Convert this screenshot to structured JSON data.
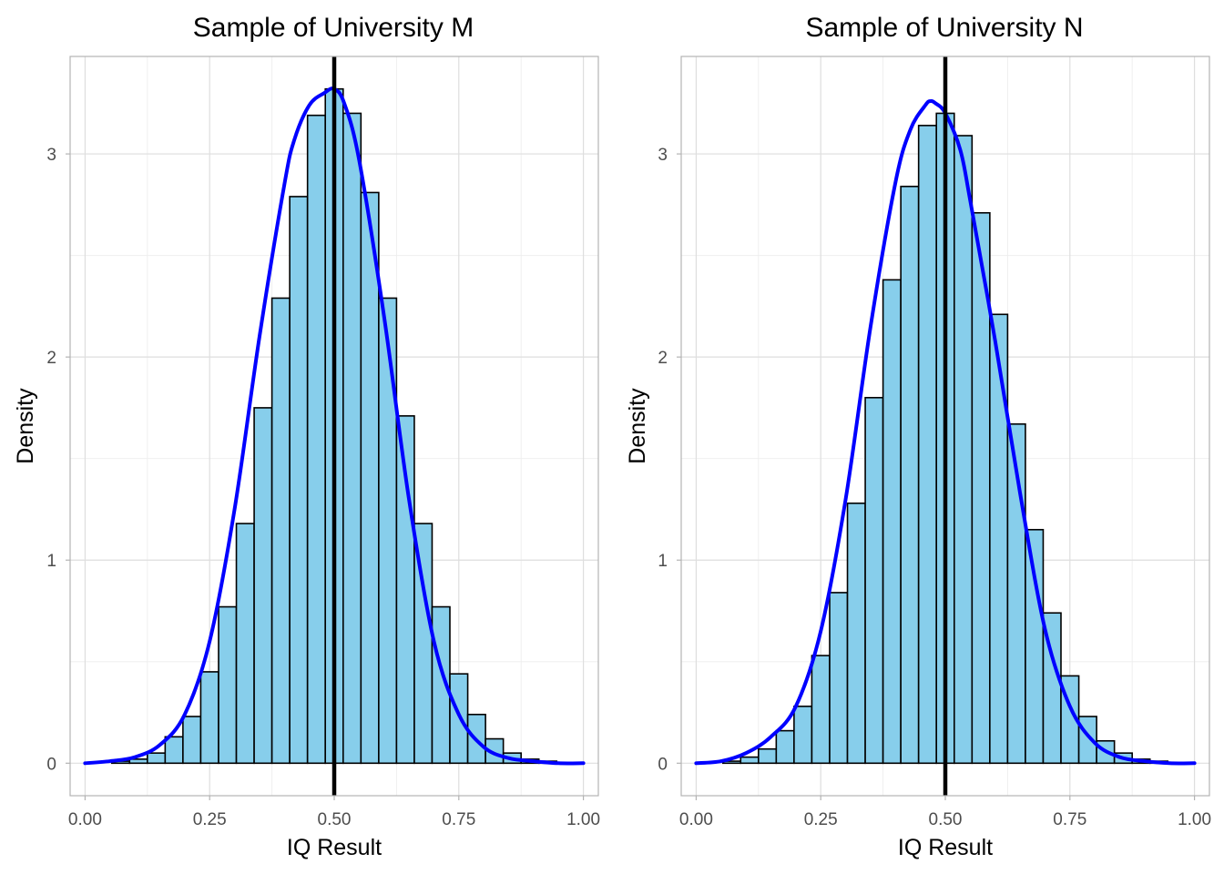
{
  "colors": {
    "bar_fill": "#87ceeb",
    "bar_stroke": "#000000",
    "density_line": "#0000ff",
    "ref_line": "#000000"
  },
  "chart_data": [
    {
      "type": "bar",
      "subtype": "histogram",
      "title": "Sample of University M",
      "xlabel": "IQ Result",
      "ylabel": "Density",
      "xlim": [
        -0.03,
        1.03
      ],
      "ylim": [
        -0.16,
        3.48
      ],
      "xticks": [
        0.0,
        0.25,
        0.5,
        0.75,
        1.0
      ],
      "xtick_labels": [
        "0.00",
        "0.25",
        "0.50",
        "0.75",
        "1.00"
      ],
      "yticks": [
        0,
        1,
        2,
        3
      ],
      "ytick_labels": [
        "0",
        "1",
        "2",
        "3"
      ],
      "bin_width": 0.0357,
      "bin_edges": [
        -0.0179,
        0.0179,
        0.0536,
        0.0893,
        0.125,
        0.1607,
        0.1964,
        0.2321,
        0.2679,
        0.3036,
        0.3393,
        0.375,
        0.4107,
        0.4464,
        0.4821,
        0.5179,
        0.5536,
        0.5893,
        0.625,
        0.6607,
        0.6964,
        0.7321,
        0.7679,
        0.8036,
        0.8393,
        0.875,
        0.9107,
        0.9464,
        0.9821,
        1.0179
      ],
      "values": [
        0.0,
        0.0,
        0.01,
        0.02,
        0.05,
        0.13,
        0.23,
        0.45,
        0.77,
        1.18,
        1.75,
        2.29,
        2.79,
        3.19,
        3.32,
        3.2,
        2.81,
        2.29,
        1.71,
        1.18,
        0.77,
        0.44,
        0.24,
        0.12,
        0.05,
        0.02,
        0.01,
        0.0,
        0.0
      ],
      "density_x": [
        0.0,
        0.05,
        0.1,
        0.15,
        0.2,
        0.25,
        0.3,
        0.35,
        0.4,
        0.42,
        0.45,
        0.48,
        0.5,
        0.52,
        0.55,
        0.6,
        0.65,
        0.7,
        0.75,
        0.8,
        0.85,
        0.9,
        0.95,
        1.0
      ],
      "density_y": [
        0.0,
        0.01,
        0.03,
        0.09,
        0.24,
        0.6,
        1.25,
        2.1,
        2.85,
        3.07,
        3.24,
        3.3,
        3.32,
        3.25,
        2.97,
        2.2,
        1.3,
        0.6,
        0.24,
        0.08,
        0.025,
        0.01,
        0.0,
        0.0
      ],
      "vline_x": 0.5
    },
    {
      "type": "bar",
      "subtype": "histogram",
      "title": "Sample of University N",
      "xlabel": "IQ Result",
      "ylabel": "Density",
      "xlim": [
        -0.03,
        1.03
      ],
      "ylim": [
        -0.16,
        3.48
      ],
      "xticks": [
        0.0,
        0.25,
        0.5,
        0.75,
        1.0
      ],
      "xtick_labels": [
        "0.00",
        "0.25",
        "0.50",
        "0.75",
        "1.00"
      ],
      "yticks": [
        0,
        1,
        2,
        3
      ],
      "ytick_labels": [
        "0",
        "1",
        "2",
        "3"
      ],
      "bin_width": 0.0357,
      "bin_edges": [
        -0.0179,
        0.0179,
        0.0536,
        0.0893,
        0.125,
        0.1607,
        0.1964,
        0.2321,
        0.2679,
        0.3036,
        0.3393,
        0.375,
        0.4107,
        0.4464,
        0.4821,
        0.5179,
        0.5536,
        0.5893,
        0.625,
        0.6607,
        0.6964,
        0.7321,
        0.7679,
        0.8036,
        0.8393,
        0.875,
        0.9107,
        0.9464,
        0.9821,
        1.0179
      ],
      "values": [
        0.0,
        0.0,
        0.01,
        0.03,
        0.07,
        0.16,
        0.28,
        0.53,
        0.84,
        1.28,
        1.8,
        2.38,
        2.84,
        3.14,
        3.2,
        3.09,
        2.71,
        2.21,
        1.67,
        1.15,
        0.74,
        0.43,
        0.23,
        0.11,
        0.05,
        0.02,
        0.01,
        0.0,
        0.0
      ],
      "density_x": [
        0.0,
        0.05,
        0.1,
        0.15,
        0.2,
        0.25,
        0.3,
        0.35,
        0.4,
        0.43,
        0.46,
        0.47,
        0.48,
        0.5,
        0.53,
        0.55,
        0.6,
        0.65,
        0.7,
        0.75,
        0.8,
        0.85,
        0.9,
        0.95,
        1.0
      ],
      "density_y": [
        0.0,
        0.01,
        0.05,
        0.13,
        0.28,
        0.65,
        1.3,
        2.15,
        2.86,
        3.12,
        3.24,
        3.26,
        3.25,
        3.2,
        3.02,
        2.77,
        2.08,
        1.33,
        0.66,
        0.28,
        0.1,
        0.03,
        0.01,
        0.0,
        0.0
      ],
      "vline_x": 0.5
    }
  ]
}
